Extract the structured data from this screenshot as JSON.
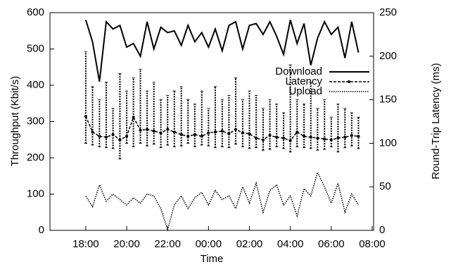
{
  "chart_data": {
    "type": "line",
    "xlabel": "Time",
    "ylabel": "Throughput (Kbit/s)",
    "y2label": "Round-Trip Latency (ms)",
    "x": [
      18,
      18.33,
      18.67,
      19,
      19.33,
      19.67,
      20,
      20.33,
      20.67,
      21,
      21.33,
      21.67,
      22,
      22.33,
      22.67,
      23,
      23.33,
      23.67,
      24,
      24.33,
      24.67,
      25,
      25.33,
      25.67,
      26,
      26.33,
      26.67,
      27,
      27.33,
      27.67,
      28,
      28.33,
      28.67,
      29,
      29.33,
      29.67,
      30,
      30.33,
      30.67,
      31,
      31.33
    ],
    "series": [
      {
        "name": "Download",
        "color": "#000000",
        "linestyle": "solid",
        "values": [
          580,
          520,
          410,
          575,
          555,
          565,
          505,
          515,
          480,
          575,
          500,
          560,
          545,
          550,
          510,
          565,
          520,
          545,
          505,
          555,
          495,
          565,
          575,
          500,
          565,
          570,
          540,
          575,
          535,
          485,
          580,
          515,
          570,
          455,
          530,
          575,
          540,
          560,
          475,
          575,
          490
        ]
      },
      {
        "name": "Latency",
        "color": "#000000",
        "linestyle": "dashed",
        "axis": "y2",
        "values": [
          131,
          113,
          108,
          107,
          110,
          104,
          108,
          130,
          115,
          116,
          114,
          112,
          116,
          113,
          110,
          108,
          110,
          108,
          112,
          113,
          114,
          111,
          116,
          112,
          111,
          106,
          104,
          109,
          107,
          106,
          103,
          113,
          108,
          107,
          106,
          105,
          104,
          106,
          107,
          109,
          108
        ],
        "low": [
          100,
          98,
          96,
          95,
          94,
          82,
          100,
          96,
          100,
          97,
          99,
          95,
          98,
          96,
          97,
          100,
          96,
          98,
          97,
          95,
          96,
          95,
          99,
          96,
          94,
          95,
          92,
          93,
          96,
          94,
          90,
          96,
          95,
          94,
          92,
          93,
          96,
          90,
          95,
          97,
          94
        ],
        "high": [
          205,
          165,
          150,
          170,
          140,
          180,
          160,
          175,
          185,
          160,
          170,
          150,
          155,
          160,
          165,
          150,
          145,
          160,
          140,
          165,
          150,
          155,
          175,
          150,
          160,
          155,
          140,
          150,
          145,
          135,
          190,
          150,
          145,
          170,
          140,
          150,
          130,
          145,
          140,
          135,
          130
        ]
      },
      {
        "name": "Upload",
        "color": "#000000",
        "linestyle": "dotted",
        "values": [
          95,
          65,
          125,
          80,
          100,
          85,
          70,
          90,
          75,
          100,
          95,
          60,
          2,
          70,
          95,
          60,
          90,
          105,
          70,
          110,
          85,
          95,
          60,
          120,
          75,
          130,
          50,
          110,
          125,
          70,
          95,
          40,
          115,
          95,
          160,
          120,
          75,
          130,
          50,
          100,
          70
        ]
      }
    ],
    "xlim": [
      16.25,
      32.07
    ],
    "xticks": [
      {
        "value": 18,
        "label": "18:00"
      },
      {
        "value": 20,
        "label": "20:00"
      },
      {
        "value": 22,
        "label": "22:00"
      },
      {
        "value": 24,
        "label": "00:00"
      },
      {
        "value": 26,
        "label": "02:00"
      },
      {
        "value": 28,
        "label": "04:00"
      },
      {
        "value": 30,
        "label": "06:00"
      },
      {
        "value": 32,
        "label": "08:00"
      }
    ],
    "ylim": [
      0,
      600
    ],
    "yticks": [
      0,
      100,
      200,
      300,
      400,
      500,
      600
    ],
    "y2lim": [
      0,
      250
    ],
    "y2ticks": [
      0,
      50,
      100,
      150,
      200,
      250
    ],
    "legend": "upper right",
    "grid": false
  }
}
